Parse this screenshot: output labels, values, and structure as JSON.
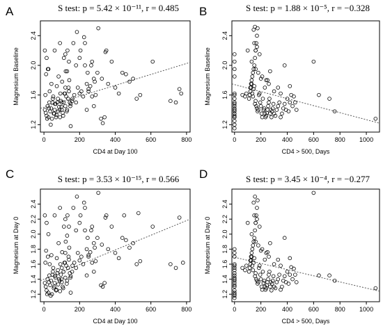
{
  "chart_data": [
    {
      "type": "scatter",
      "panel": "A",
      "title": "S test:  p = 5.42 × 10⁻¹¹, r = 0.485",
      "xlabel": "CD4 at Day 100",
      "ylabel": "Magnesium Baseline",
      "xlim": [
        -20,
        820
      ],
      "ylim": [
        1.1,
        2.6
      ],
      "xticks": [
        0,
        200,
        400,
        600,
        800
      ],
      "yticks": [
        1.2,
        1.6,
        2.0,
        2.4
      ],
      "trend": {
        "x": [
          -20,
          820
        ],
        "y": [
          1.42,
          2.04
        ]
      },
      "x": [
        5,
        10,
        15,
        20,
        25,
        30,
        35,
        40,
        45,
        50,
        55,
        60,
        65,
        70,
        75,
        80,
        85,
        90,
        95,
        100,
        105,
        110,
        115,
        120,
        125,
        130,
        135,
        140,
        145,
        150,
        8,
        18,
        28,
        38,
        48,
        58,
        68,
        78,
        88,
        98,
        108,
        118,
        128,
        138,
        148,
        158,
        12,
        22,
        32,
        42,
        52,
        62,
        72,
        82,
        92,
        102,
        112,
        122,
        132,
        142,
        160,
        170,
        180,
        190,
        200,
        210,
        220,
        230,
        240,
        250,
        260,
        270,
        280,
        290,
        300,
        165,
        185,
        205,
        225,
        245,
        265,
        285,
        305,
        325,
        345,
        360,
        380,
        400,
        420,
        440,
        460,
        480,
        500,
        520,
        540,
        610,
        710,
        740,
        760,
        770,
        5,
        15,
        25,
        60,
        90,
        100,
        120,
        140,
        200,
        230,
        250,
        270,
        330,
        150,
        320,
        340,
        280,
        350,
        180,
        130,
        120,
        240
      ],
      "y": [
        1.4,
        1.36,
        1.32,
        1.45,
        1.3,
        1.5,
        1.38,
        1.42,
        1.28,
        1.55,
        1.35,
        1.4,
        1.48,
        1.33,
        1.5,
        1.38,
        1.44,
        1.3,
        1.52,
        1.4,
        1.36,
        1.5,
        1.62,
        1.45,
        1.58,
        1.4,
        1.55,
        1.65,
        1.5,
        1.48,
        1.6,
        1.28,
        1.42,
        1.2,
        1.5,
        1.35,
        1.3,
        1.55,
        1.4,
        1.44,
        1.32,
        1.62,
        1.38,
        1.7,
        1.45,
        1.52,
        1.88,
        1.95,
        1.65,
        1.75,
        1.58,
        1.48,
        1.72,
        1.85,
        1.62,
        1.78,
        2.1,
        1.92,
        2.2,
        1.8,
        1.55,
        1.6,
        1.5,
        1.7,
        1.62,
        1.65,
        1.58,
        2.0,
        1.75,
        1.68,
        1.72,
        2.05,
        1.82,
        1.6,
        1.9,
        2.3,
        2.45,
        2.2,
        2.38,
        1.9,
        2.0,
        1.78,
        2.5,
        1.82,
        2.18,
        1.75,
        2.05,
        1.7,
        1.62,
        1.9,
        1.88,
        1.78,
        1.82,
        1.55,
        1.6,
        2.05,
        1.52,
        1.5,
        1.68,
        1.62,
        2.2,
        2.1,
        1.95,
        2.2,
        2.3,
        1.5,
        2.15,
        2.05,
        2.1,
        2.3,
        1.65,
        1.58,
        1.22,
        1.18,
        1.28,
        1.3,
        1.45,
        2.2,
        2.0,
        1.92,
        1.7,
        1.4
      ],
      "rotate_yticks": true
    },
    {
      "type": "scatter",
      "panel": "B",
      "title": "S test:  p = 1.88 × 10⁻⁵, r = −0.328",
      "xlabel": "CD4 > 500, Days",
      "ylabel": "Magnesium Baseline",
      "xlim": [
        -20,
        1100
      ],
      "ylim": [
        1.1,
        2.6
      ],
      "xticks": [
        0,
        200,
        400,
        600,
        800,
        1000
      ],
      "yticks": [
        1.2,
        1.6,
        2.0,
        2.4
      ],
      "trend": {
        "x": [
          -20,
          1100
        ],
        "y": [
          1.75,
          1.22
        ]
      },
      "x": [
        0,
        0,
        0,
        0,
        0,
        0,
        0,
        0,
        0,
        0,
        0,
        0,
        0,
        0,
        0,
        0,
        0,
        0,
        0,
        0,
        120,
        125,
        130,
        135,
        140,
        145,
        150,
        155,
        160,
        165,
        170,
        175,
        110,
        115,
        120,
        125,
        130,
        135,
        140,
        145,
        150,
        155,
        160,
        165,
        170,
        175,
        180,
        185,
        190,
        195,
        200,
        205,
        210,
        215,
        220,
        225,
        230,
        235,
        240,
        245,
        250,
        255,
        260,
        265,
        270,
        275,
        280,
        285,
        290,
        295,
        300,
        310,
        320,
        330,
        340,
        350,
        360,
        370,
        380,
        390,
        400,
        410,
        420,
        430,
        440,
        450,
        460,
        470,
        100,
        130,
        160,
        200,
        260,
        300,
        380,
        420,
        600,
        640,
        720,
        760,
        1070,
        180,
        210,
        240,
        160,
        150,
        145,
        155,
        170,
        190,
        60,
        80,
        90,
        230,
        250,
        270,
        330,
        350
      ],
      "y": [
        1.2,
        1.3,
        1.35,
        1.38,
        1.4,
        1.42,
        1.45,
        1.48,
        1.3,
        1.32,
        1.25,
        1.15,
        1.6,
        1.62,
        1.85,
        1.95,
        2.05,
        2.15,
        1.5,
        1.55,
        1.7,
        1.75,
        1.8,
        1.85,
        1.9,
        1.95,
        2.0,
        2.1,
        2.2,
        2.3,
        2.4,
        2.5,
        1.55,
        1.6,
        1.65,
        1.7,
        1.75,
        1.62,
        1.58,
        1.68,
        1.72,
        1.48,
        1.52,
        1.45,
        1.42,
        1.38,
        1.4,
        1.6,
        1.62,
        1.5,
        1.45,
        1.35,
        1.3,
        1.55,
        1.4,
        1.42,
        1.35,
        1.3,
        1.32,
        1.36,
        1.4,
        1.45,
        1.5,
        1.55,
        1.35,
        1.4,
        1.3,
        1.38,
        1.42,
        1.48,
        1.35,
        1.32,
        1.4,
        1.45,
        1.5,
        1.3,
        1.35,
        1.42,
        1.48,
        1.4,
        1.55,
        1.38,
        1.5,
        1.6,
        1.45,
        1.58,
        1.5,
        1.4,
        2.2,
        2.05,
        1.95,
        1.82,
        1.75,
        1.65,
        2.0,
        1.72,
        2.05,
        1.6,
        1.55,
        1.38,
        1.28,
        1.9,
        1.85,
        1.8,
        2.2,
        2.3,
        2.48,
        2.52,
        2.25,
        2.15,
        1.6,
        1.58,
        1.62,
        1.7,
        1.8,
        1.92,
        1.7,
        1.62
      ],
      "rotate_yticks": true
    },
    {
      "type": "scatter",
      "panel": "C",
      "title": "S test:  p = 3.53 × 10⁻¹⁵, r = 0.566",
      "xlabel": "CD4 at Day 100",
      "ylabel": "Magnesium at Day 0",
      "xlim": [
        -20,
        820
      ],
      "ylim": [
        1.1,
        2.6
      ],
      "xticks": [
        0,
        200,
        400,
        600,
        800
      ],
      "yticks": [
        1.2,
        1.4,
        1.6,
        1.8,
        2.0,
        2.2,
        2.4
      ],
      "trend": {
        "x": [
          -20,
          820
        ],
        "y": [
          1.38,
          2.2
        ]
      },
      "x": [
        5,
        10,
        15,
        20,
        25,
        30,
        35,
        40,
        45,
        50,
        55,
        60,
        65,
        70,
        75,
        80,
        85,
        90,
        95,
        100,
        105,
        110,
        115,
        120,
        125,
        130,
        135,
        140,
        145,
        150,
        8,
        18,
        28,
        38,
        48,
        58,
        68,
        78,
        88,
        98,
        108,
        118,
        128,
        138,
        148,
        158,
        12,
        22,
        32,
        42,
        52,
        62,
        72,
        82,
        92,
        102,
        112,
        122,
        132,
        142,
        160,
        170,
        180,
        190,
        200,
        210,
        220,
        230,
        240,
        250,
        260,
        270,
        280,
        290,
        300,
        165,
        185,
        205,
        225,
        245,
        265,
        285,
        305,
        325,
        345,
        360,
        380,
        400,
        420,
        440,
        460,
        480,
        500,
        520,
        540,
        610,
        710,
        740,
        760,
        780,
        5,
        15,
        25,
        60,
        90,
        100,
        120,
        140,
        200,
        230,
        250,
        270,
        330,
        150,
        320,
        340,
        280,
        350,
        180,
        130,
        120,
        240,
        450,
        530
      ],
      "y": [
        1.35,
        1.3,
        1.25,
        1.4,
        1.22,
        1.45,
        1.32,
        1.38,
        1.2,
        1.5,
        1.28,
        1.35,
        1.42,
        1.26,
        1.48,
        1.33,
        1.4,
        1.24,
        1.46,
        1.36,
        1.3,
        1.5,
        1.62,
        1.42,
        1.58,
        1.38,
        1.55,
        1.66,
        1.48,
        1.44,
        1.62,
        1.2,
        1.36,
        1.18,
        1.46,
        1.3,
        1.25,
        1.52,
        1.38,
        1.4,
        1.28,
        1.62,
        1.34,
        1.7,
        1.42,
        1.5,
        1.78,
        1.7,
        1.6,
        1.72,
        1.55,
        1.44,
        1.68,
        1.88,
        1.6,
        1.76,
        2.1,
        1.9,
        2.25,
        1.82,
        1.58,
        1.62,
        1.55,
        1.75,
        1.65,
        1.7,
        1.6,
        2.05,
        1.8,
        1.72,
        1.76,
        2.1,
        1.88,
        1.64,
        1.95,
        2.35,
        2.5,
        2.25,
        2.42,
        1.95,
        2.05,
        1.82,
        2.55,
        1.86,
        2.22,
        1.8,
        2.1,
        1.75,
        1.68,
        1.95,
        1.92,
        1.82,
        1.88,
        1.6,
        1.64,
        2.1,
        1.6,
        1.55,
        2.22,
        1.62,
        2.25,
        2.15,
        2.0,
        2.25,
        2.35,
        1.55,
        2.2,
        2.1,
        2.15,
        2.35,
        1.7,
        1.62,
        1.3,
        1.22,
        1.32,
        1.35,
        1.5,
        2.25,
        2.05,
        1.98,
        1.75,
        1.45,
        2.25,
        2.28
      ],
      "rotate_yticks": true
    },
    {
      "type": "scatter",
      "panel": "D",
      "title": "S test:  p = 3.45 × 10⁻⁴, r = −0.277",
      "xlabel": "CD4 > 500, Days",
      "ylabel": "Magnesium at Day 0",
      "xlim": [
        -20,
        1100
      ],
      "ylim": [
        1.1,
        2.6
      ],
      "xticks": [
        0,
        200,
        400,
        600,
        800,
        1000
      ],
      "yticks": [
        1.2,
        1.4,
        1.6,
        1.8,
        2.0,
        2.2,
        2.4
      ],
      "trend": {
        "x": [
          -20,
          1100
        ],
        "y": [
          1.7,
          1.24
        ]
      },
      "x": [
        0,
        0,
        0,
        0,
        0,
        0,
        0,
        0,
        0,
        0,
        0,
        0,
        0,
        0,
        0,
        0,
        0,
        0,
        0,
        0,
        120,
        125,
        130,
        135,
        140,
        145,
        150,
        155,
        160,
        165,
        170,
        175,
        110,
        115,
        120,
        125,
        130,
        135,
        140,
        145,
        150,
        155,
        160,
        165,
        170,
        175,
        180,
        185,
        190,
        195,
        200,
        205,
        210,
        215,
        220,
        225,
        230,
        235,
        240,
        245,
        250,
        255,
        260,
        265,
        270,
        275,
        280,
        285,
        290,
        295,
        300,
        310,
        320,
        330,
        340,
        350,
        360,
        370,
        380,
        390,
        400,
        410,
        420,
        430,
        440,
        450,
        460,
        470,
        100,
        130,
        160,
        200,
        260,
        300,
        380,
        420,
        600,
        640,
        720,
        760,
        1070,
        180,
        210,
        240,
        160,
        150,
        145,
        155,
        170,
        190,
        60,
        80,
        90,
        230,
        250,
        270,
        330,
        350
      ],
      "y": [
        1.15,
        1.2,
        1.25,
        1.3,
        1.32,
        1.35,
        1.38,
        1.4,
        1.42,
        1.45,
        1.22,
        1.18,
        1.55,
        1.58,
        1.6,
        1.7,
        1.75,
        1.8,
        1.48,
        1.52,
        1.65,
        1.7,
        1.75,
        1.8,
        1.85,
        1.9,
        1.95,
        2.05,
        2.15,
        2.25,
        2.35,
        2.45,
        1.5,
        1.55,
        1.6,
        1.65,
        1.7,
        1.58,
        1.52,
        1.62,
        1.68,
        1.44,
        1.48,
        1.4,
        1.38,
        1.34,
        1.36,
        1.55,
        1.58,
        1.46,
        1.4,
        1.3,
        1.26,
        1.5,
        1.35,
        1.38,
        1.3,
        1.26,
        1.28,
        1.32,
        1.36,
        1.4,
        1.46,
        1.5,
        1.3,
        1.36,
        1.25,
        1.34,
        1.38,
        1.44,
        1.3,
        1.28,
        1.36,
        1.4,
        1.46,
        1.26,
        1.3,
        1.38,
        1.44,
        1.36,
        1.5,
        1.34,
        1.46,
        1.56,
        1.4,
        1.54,
        1.46,
        1.36,
        2.15,
        2.0,
        1.9,
        1.78,
        1.7,
        1.6,
        1.95,
        1.68,
        2.55,
        1.45,
        1.45,
        1.38,
        1.28,
        1.85,
        1.8,
        1.75,
        2.15,
        2.25,
        2.42,
        2.5,
        2.2,
        2.1,
        1.55,
        1.52,
        1.58,
        1.66,
        1.76,
        1.88,
        1.66,
        1.58
      ],
      "rotate_yticks": true
    }
  ],
  "panels": {
    "A": "A",
    "B": "B",
    "C": "C",
    "D": "D"
  }
}
